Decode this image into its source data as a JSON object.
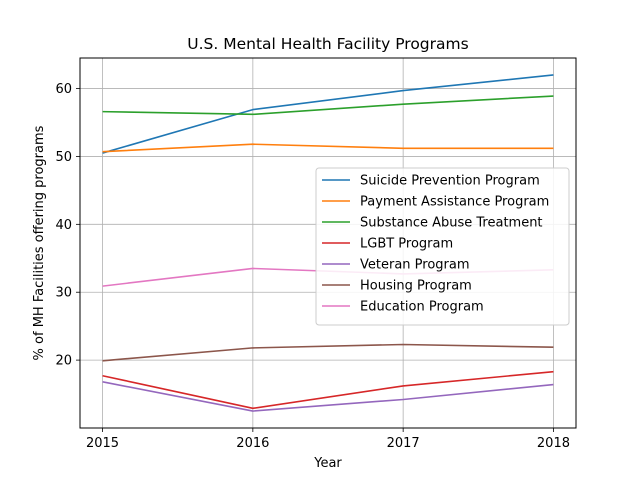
{
  "chart_data": {
    "type": "line",
    "title": "U.S. Mental Health Facility Programs",
    "xlabel": "Year",
    "ylabel": "% of MH Facilities offering programs",
    "x": [
      "2015",
      "2016",
      "2017",
      "2018"
    ],
    "xlim": [
      2014.85,
      2018.15
    ],
    "ylim": [
      10.0,
      64.5
    ],
    "yticks": [
      20,
      30,
      40,
      50,
      60
    ],
    "grid": true,
    "legend_position": "center-right",
    "series": [
      {
        "name": "Suicide Prevention Program",
        "color": "#1f77b4",
        "values": [
          50.5,
          56.9,
          59.7,
          62.0
        ]
      },
      {
        "name": "Payment Assistance Program",
        "color": "#ff7f0e",
        "values": [
          50.7,
          51.8,
          51.2,
          51.2
        ]
      },
      {
        "name": "Substance Abuse Treatment",
        "color": "#2ca02c",
        "values": [
          56.6,
          56.2,
          57.7,
          58.9
        ]
      },
      {
        "name": "LGBT Program",
        "color": "#d62728",
        "values": [
          17.7,
          12.9,
          16.2,
          18.3
        ]
      },
      {
        "name": "Veteran Program",
        "color": "#9467bd",
        "values": [
          16.8,
          12.5,
          14.2,
          16.4
        ]
      },
      {
        "name": "Housing Program",
        "color": "#8c564b",
        "values": [
          19.9,
          21.8,
          22.3,
          21.9
        ]
      },
      {
        "name": "Education Program",
        "color": "#e377c2",
        "values": [
          30.9,
          33.5,
          32.7,
          33.3
        ]
      }
    ]
  }
}
